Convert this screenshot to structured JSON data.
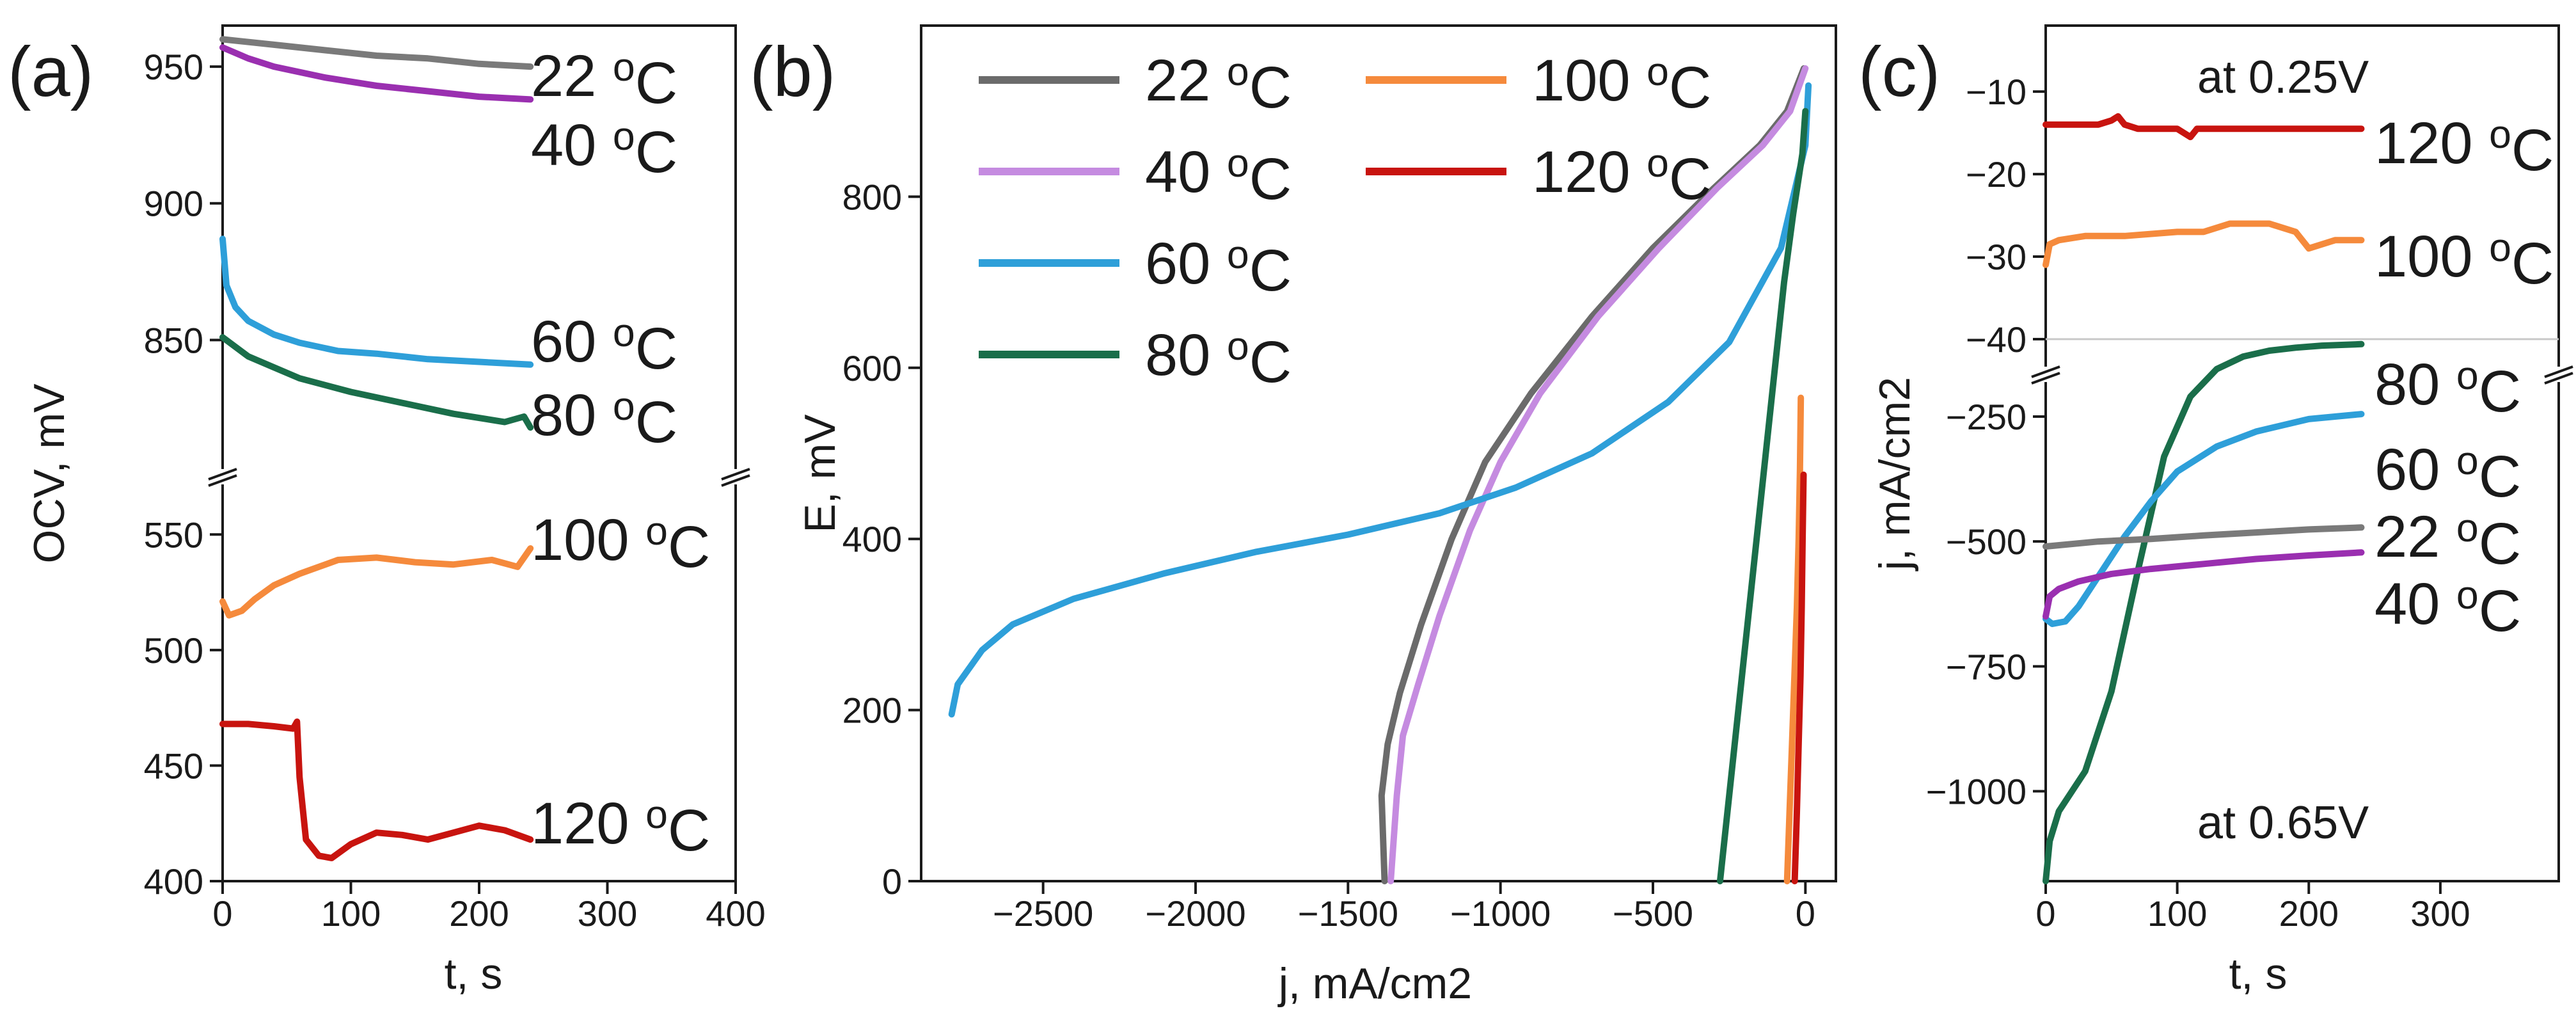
{
  "chart_data": [
    {
      "panel_label": "(a)",
      "type": "line",
      "xlabel": "t, s",
      "ylabel": "OCV, mV",
      "xlim": [
        0,
        400
      ],
      "xticks": [
        0,
        100,
        200,
        300,
        400
      ],
      "broken_y_axis": true,
      "segments": [
        {
          "range": [
            800,
            965
          ],
          "ticks": [
            850,
            900,
            950
          ]
        },
        {
          "range": [
            400,
            575
          ],
          "ticks": [
            400,
            450,
            500,
            550
          ]
        }
      ],
      "grid": false,
      "series": [
        {
          "name": "22 oC",
          "color": "#7a7a7a",
          "x": [
            0,
            40,
            80,
            120,
            160,
            200,
            240
          ],
          "y": [
            960,
            958,
            956,
            954,
            953,
            951,
            950
          ]
        },
        {
          "name": "40 oC",
          "color": "#9a2fb0",
          "x": [
            0,
            20,
            40,
            80,
            120,
            160,
            200,
            240
          ],
          "y": [
            957,
            953,
            950,
            946,
            943,
            941,
            939,
            938
          ]
        },
        {
          "name": "60 oC",
          "color": "#2e9fd9",
          "x": [
            0,
            3,
            10,
            20,
            40,
            60,
            90,
            120,
            160,
            200,
            240
          ],
          "y": [
            887,
            870,
            862,
            857,
            852,
            849,
            846,
            845,
            843,
            842,
            841
          ]
        },
        {
          "name": "80 oC",
          "color": "#1a6e4a",
          "x": [
            0,
            20,
            40,
            60,
            100,
            140,
            180,
            220,
            235,
            240
          ],
          "y": [
            851,
            844,
            840,
            836,
            831,
            827,
            823,
            820,
            822,
            818
          ]
        },
        {
          "name": "100 oC",
          "color": "#f58a3c",
          "x": [
            0,
            5,
            15,
            25,
            40,
            60,
            90,
            120,
            150,
            180,
            210,
            230,
            240
          ],
          "y": [
            521,
            515,
            517,
            522,
            528,
            533,
            539,
            540,
            538,
            537,
            539,
            536,
            544
          ]
        },
        {
          "name": "120 oC",
          "color": "#c8140f",
          "x": [
            0,
            20,
            40,
            55,
            58,
            60,
            65,
            75,
            85,
            100,
            120,
            140,
            160,
            180,
            200,
            220,
            240
          ],
          "y": [
            468,
            468,
            467,
            466,
            469,
            445,
            418,
            411,
            410,
            416,
            421,
            420,
            418,
            421,
            424,
            422,
            418
          ]
        }
      ]
    },
    {
      "panel_label": "(b)",
      "type": "line",
      "xlabel": "j, mA/cm2",
      "ylabel": "E, mV",
      "xlim": [
        -2900,
        100
      ],
      "ylim": [
        0,
        1000
      ],
      "xticks": [
        -2500,
        -2000,
        -1500,
        -1000,
        -500,
        0
      ],
      "yticks": [
        0,
        200,
        400,
        600,
        800
      ],
      "legend": "top-left",
      "grid": false,
      "series": [
        {
          "name": "22 oC",
          "color": "#6b6b6b",
          "x": [
            -1380,
            -1390,
            -1370,
            -1330,
            -1260,
            -1160,
            -1050,
            -900,
            -700,
            -500,
            -300,
            -150,
            -60,
            -5
          ],
          "y": [
            0,
            100,
            160,
            220,
            300,
            400,
            490,
            570,
            660,
            740,
            810,
            860,
            900,
            950
          ]
        },
        {
          "name": "40 oC",
          "color": "#c58be0",
          "x": [
            -1360,
            -1340,
            -1320,
            -1270,
            -1200,
            -1100,
            -1000,
            -870,
            -680,
            -480,
            -290,
            -140,
            -50,
            0
          ],
          "y": [
            0,
            100,
            170,
            230,
            310,
            410,
            490,
            570,
            660,
            740,
            810,
            860,
            900,
            950
          ]
        },
        {
          "name": "60 oC",
          "color": "#2e9fd9",
          "x": [
            -2800,
            -2780,
            -2700,
            -2600,
            -2400,
            -2100,
            -1800,
            -1500,
            -1200,
            -950,
            -700,
            -450,
            -250,
            -80,
            0,
            10
          ],
          "y": [
            195,
            230,
            270,
            300,
            330,
            360,
            385,
            405,
            430,
            460,
            500,
            560,
            630,
            740,
            860,
            930
          ]
        },
        {
          "name": "80 oC",
          "color": "#1a6e4a",
          "x": [
            -280,
            -250,
            -220,
            -190,
            -160,
            -130,
            -100,
            -70,
            -40,
            -10,
            0
          ],
          "y": [
            0,
            100,
            200,
            300,
            400,
            500,
            600,
            700,
            780,
            850,
            900
          ]
        },
        {
          "name": "100 oC",
          "color": "#f58a3c",
          "x": [
            -60,
            -52,
            -44,
            -36,
            -28,
            -22,
            -18,
            -15
          ],
          "y": [
            0,
            80,
            160,
            240,
            320,
            400,
            480,
            565
          ]
        },
        {
          "name": "120 oC",
          "color": "#c8140f",
          "x": [
            -35,
            -28,
            -22,
            -16,
            -12,
            -9,
            -6
          ],
          "y": [
            0,
            80,
            160,
            240,
            320,
            400,
            475
          ]
        }
      ]
    },
    {
      "panel_label": "(c)",
      "type": "line",
      "xlabel": "t, s",
      "ylabel": "j, mA/cm2",
      "xlim": [
        0,
        390
      ],
      "xticks": [
        0,
        100,
        200,
        300
      ],
      "broken_y_axis": true,
      "segments": [
        {
          "range": [
            -40,
            -2
          ],
          "ticks": [
            -40,
            -30,
            -20,
            -10
          ]
        },
        {
          "range": [
            -1180,
            -95
          ],
          "ticks": [
            -1000,
            -750,
            -500,
            -250
          ]
        }
      ],
      "annotations": [
        "at 0.25V",
        "at 0.65V"
      ],
      "grid": false,
      "series": [
        {
          "name": "120 oC",
          "color": "#c8140f",
          "x": [
            0,
            20,
            40,
            50,
            55,
            60,
            70,
            100,
            110,
            115,
            120,
            150,
            200,
            240
          ],
          "y": [
            -14,
            -14,
            -14,
            -13.5,
            -13,
            -14,
            -14.5,
            -14.5,
            -15.5,
            -14.5,
            -14.5,
            -14.5,
            -14.5,
            -14.5
          ]
        },
        {
          "name": "100 oC",
          "color": "#f58a3c",
          "x": [
            0,
            3,
            10,
            30,
            60,
            100,
            120,
            140,
            170,
            190,
            200,
            220,
            240
          ],
          "y": [
            -31,
            -28.5,
            -28,
            -27.5,
            -27.5,
            -27,
            -27,
            -26,
            -26,
            -27,
            -29,
            -28,
            -28
          ]
        },
        {
          "name": "80 oC",
          "color": "#1a6e4a",
          "x": [
            0,
            3,
            10,
            30,
            50,
            70,
            90,
            110,
            130,
            150,
            170,
            190,
            210,
            240
          ],
          "y": [
            -1180,
            -1100,
            -1040,
            -960,
            -800,
            -560,
            -330,
            -210,
            -155,
            -130,
            -118,
            -112,
            -108,
            -105
          ]
        },
        {
          "name": "60 oC",
          "color": "#2e9fd9",
          "x": [
            0,
            5,
            15,
            25,
            40,
            60,
            80,
            100,
            130,
            160,
            200,
            240
          ],
          "y": [
            -655,
            -665,
            -660,
            -630,
            -570,
            -490,
            -420,
            -360,
            -310,
            -280,
            -255,
            -245
          ]
        },
        {
          "name": "22 oC",
          "color": "#7a7a7a",
          "x": [
            0,
            40,
            80,
            120,
            160,
            200,
            240
          ],
          "y": [
            -510,
            -500,
            -495,
            -488,
            -482,
            -476,
            -472
          ]
        },
        {
          "name": "40 oC",
          "color": "#9a2fb0",
          "x": [
            0,
            3,
            10,
            25,
            50,
            80,
            120,
            160,
            200,
            240
          ],
          "y": [
            -650,
            -610,
            -595,
            -580,
            -565,
            -555,
            -545,
            -535,
            -528,
            -522
          ]
        }
      ]
    }
  ]
}
